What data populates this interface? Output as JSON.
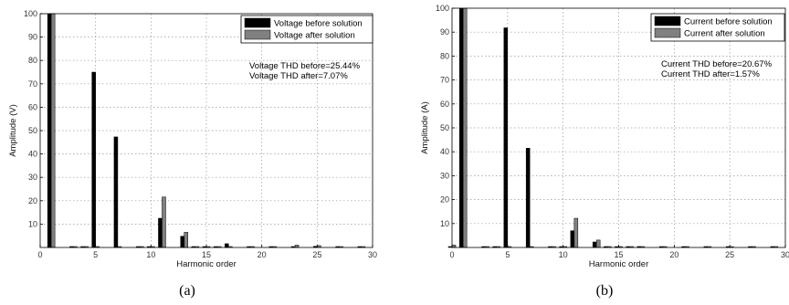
{
  "chart_data": [
    {
      "type": "bar",
      "caption": "(a)",
      "xlabel": "Harmonic order",
      "ylabel": "Amplitude (V)",
      "xlim": [
        0,
        30
      ],
      "ylim": [
        0,
        100
      ],
      "xticks": [
        0,
        5,
        10,
        15,
        20,
        25,
        30
      ],
      "yticks": [
        10,
        20,
        30,
        40,
        50,
        60,
        70,
        80,
        90,
        100
      ],
      "grid": true,
      "legend_position": "top-right",
      "x": [
        1,
        3,
        4,
        5,
        7,
        9,
        10,
        11,
        13,
        14,
        15,
        16,
        17,
        19,
        21,
        23,
        25,
        27,
        29
      ],
      "series": [
        {
          "name": "Voltage before solution",
          "color": "#000000",
          "values": [
            100,
            0.4,
            0.3,
            75,
            47.3,
            0.3,
            0.3,
            12.5,
            4.8,
            0.3,
            0.3,
            0.3,
            1.6,
            0.3,
            0.3,
            0.4,
            0.5,
            0.3,
            0.3
          ]
        },
        {
          "name": "Voltage after solution",
          "color": "#808080",
          "values": [
            100,
            0.2,
            0.2,
            0.3,
            0.3,
            0.2,
            0.2,
            21.6,
            6.5,
            0.2,
            0.2,
            0.2,
            0.4,
            0.2,
            0.2,
            1.0,
            0.8,
            0.2,
            0.2
          ]
        }
      ],
      "annotations": [
        "Voltage THD before=25.44%",
        "Voltage THD after=7.07%"
      ]
    },
    {
      "type": "bar",
      "caption": "(b)",
      "xlabel": "Harmonic order",
      "ylabel": "Amplitude (A)",
      "xlim": [
        0,
        30
      ],
      "ylim": [
        0,
        100
      ],
      "xticks": [
        0,
        5,
        10,
        15,
        20,
        25,
        30
      ],
      "yticks": [
        10,
        20,
        30,
        40,
        50,
        60,
        70,
        80,
        90,
        100
      ],
      "grid": true,
      "legend_position": "top-right",
      "x": [
        0,
        1,
        3,
        4,
        5,
        7,
        9,
        10,
        11,
        13,
        14,
        15,
        16,
        17,
        19,
        21,
        23,
        25,
        27,
        29
      ],
      "series": [
        {
          "name": "Current before solution",
          "color": "#000000",
          "values": [
            0.3,
            100,
            0.3,
            0.3,
            91.8,
            41.5,
            0.3,
            0.3,
            7.0,
            2.3,
            0.3,
            0.3,
            0.3,
            0.4,
            0.3,
            0.3,
            0.3,
            0.3,
            0.3,
            0.3
          ]
        },
        {
          "name": "Current after solution",
          "color": "#808080",
          "values": [
            1.0,
            100,
            0.2,
            0.2,
            0.3,
            0.3,
            0.2,
            0.2,
            12.2,
            3.1,
            0.2,
            0.2,
            0.2,
            0.3,
            0.2,
            0.2,
            0.2,
            0.2,
            0.2,
            0.2
          ]
        }
      ],
      "annotations": [
        "Current THD before=20.67%",
        "Current THD after=1.57%"
      ]
    }
  ]
}
